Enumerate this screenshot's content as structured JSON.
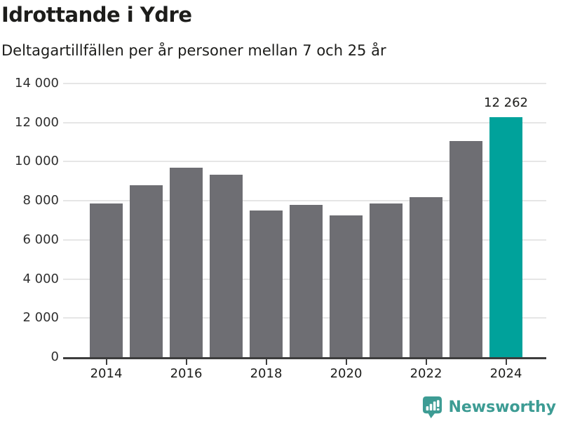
{
  "header": {
    "title": "Idrottande i Ydre",
    "subtitle": "Deltagartillfällen per år personer mellan 7 och 25 år"
  },
  "chart_data": {
    "type": "bar",
    "title": "Idrottande i Ydre",
    "subtitle": "Deltagartillfällen per år personer mellan 7 och 25 år",
    "categories": [
      "2014",
      "2015",
      "2016",
      "2017",
      "2018",
      "2019",
      "2020",
      "2021",
      "2022",
      "2023",
      "2024"
    ],
    "values": [
      7850,
      8800,
      9700,
      9350,
      7500,
      7800,
      7250,
      7850,
      8200,
      11050,
      12262
    ],
    "highlight_index": 10,
    "highlight_label": "12 262",
    "y_ticks": [
      {
        "value": 0,
        "label": "0"
      },
      {
        "value": 2000,
        "label": "2 000"
      },
      {
        "value": 4000,
        "label": "4 000"
      },
      {
        "value": 6000,
        "label": "6 000"
      },
      {
        "value": 8000,
        "label": "8 000"
      },
      {
        "value": 10000,
        "label": "10 000"
      },
      {
        "value": 12000,
        "label": "12 000"
      },
      {
        "value": 14000,
        "label": "14 000"
      }
    ],
    "x_tick_labels": [
      "2014",
      "2016",
      "2018",
      "2020",
      "2022",
      "2024"
    ],
    "ylim": [
      0,
      14000
    ],
    "xlabel": "",
    "ylabel": "",
    "grid": true,
    "legend": false,
    "bar_color": "#6e6e73",
    "highlight_color": "#00a29b",
    "grid_color": "#e6e6e6",
    "axis_color": "#3d3d3d"
  },
  "footer": {
    "brand": "Newsworthy",
    "logo_icon": "newsworthy-bubble-barchart-icon",
    "brand_color": "#3d9c94"
  }
}
